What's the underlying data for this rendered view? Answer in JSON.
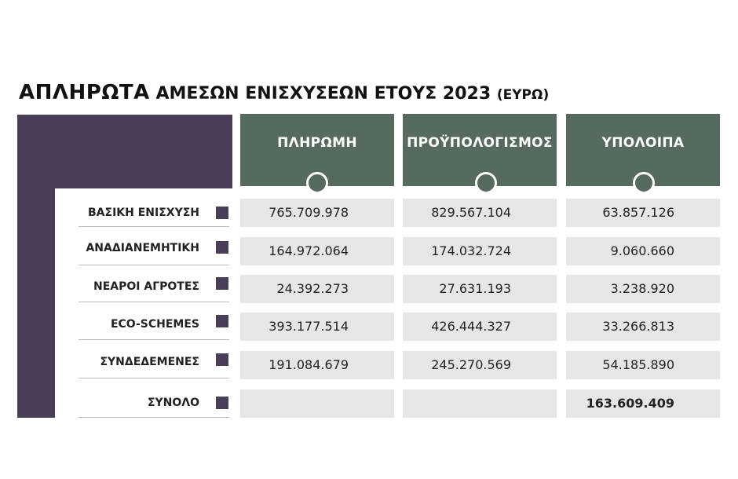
{
  "title": {
    "bold": "ΑΠΛΗΡΩΤΑ",
    "regular": "ΑΜΕΣΩΝ ΕΝΙΣΧΥΣΕΩΝ ΕΤΟΥΣ 2023",
    "unit": "(ΕΥΡΩ)"
  },
  "colors": {
    "header": "#566a5e",
    "accent": "#4a3d58",
    "cell": "#e6e6e8"
  },
  "chart_data": {
    "type": "table",
    "columns": [
      "ΠΛΗΡΩΜΗ",
      "ΠΡΟΫΠΟΛΟΓΙΣΜΟΣ",
      "ΥΠΟΛΟΙΠΑ"
    ],
    "rows": [
      {
        "label": "ΒΑΣΙΚΗ ΕΝΙΣΧΥΣΗ",
        "values": [
          "765.709.978",
          "829.567.104",
          "63.857.126"
        ]
      },
      {
        "label": "ΑΝΑΔΙΑΝΕΜΗΤΙΚΗ",
        "values": [
          "164.972.064",
          "174.032.724",
          "9.060.660"
        ]
      },
      {
        "label": "ΝΕΑΡΟΙ ΑΓΡΟΤΕΣ",
        "values": [
          "24.392.273",
          "27.631.193",
          "3.238.920"
        ]
      },
      {
        "label": "ECO-SCHEMES",
        "values": [
          "393.177.514",
          "426.444.327",
          "33.266.813"
        ]
      },
      {
        "label": "ΣΥΝΔΕΔΕΜΕΝΕΣ",
        "values": [
          "191.084.679",
          "245.270.569",
          "54.185.890"
        ]
      },
      {
        "label": "ΣΥΝΟΛΟ",
        "values": [
          "",
          "",
          "163.609.409"
        ]
      }
    ]
  }
}
